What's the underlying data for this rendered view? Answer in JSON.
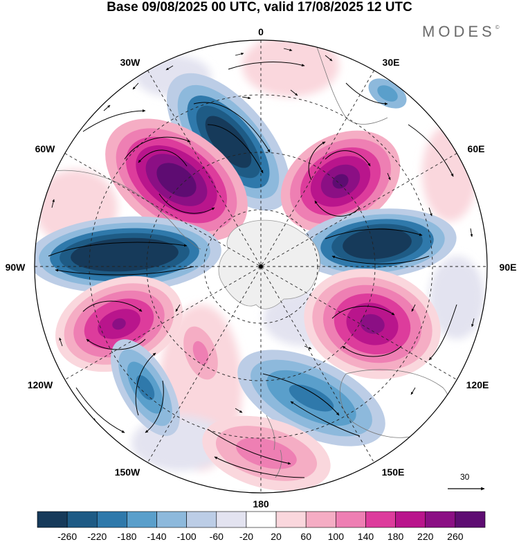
{
  "title": "Base 09/08/2025 00 UTC, valid 17/08/2025 12 UTC",
  "brand": "MODES",
  "brand_mark": "©",
  "lon_labels": {
    "n0": "0",
    "n30e": "30E",
    "n60e": "60E",
    "n90e": "90E",
    "n120e": "120E",
    "n150e": "150E",
    "n180": "180",
    "n150w": "150W",
    "n120w": "120W",
    "n90w": "90W",
    "n60w": "60W",
    "n30w": "30W"
  },
  "reference_vector": "30",
  "colorbar": {
    "labels": [
      "-260",
      "-220",
      "-180",
      "-140",
      "-100",
      "-60",
      "-20",
      "20",
      "60",
      "100",
      "140",
      "180",
      "220",
      "260"
    ],
    "colors": [
      "#163a5a",
      "#1e5b85",
      "#2f79ab",
      "#5a9fcb",
      "#8db9dc",
      "#bccde6",
      "#e3e3f0",
      "#ffffff",
      "#fad7dd",
      "#f5adc4",
      "#ee7fb3",
      "#dd3c9c",
      "#b9158c",
      "#8b0f84",
      "#5e0c72"
    ]
  }
}
